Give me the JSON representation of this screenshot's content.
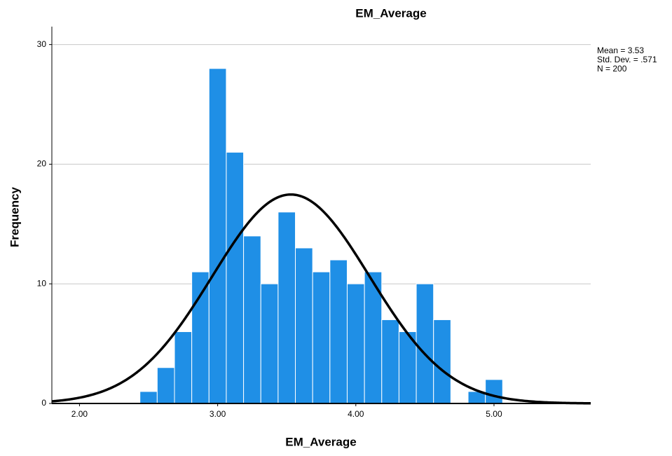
{
  "chart_data": {
    "type": "histogram",
    "title": "EM_Average",
    "x_label": "EM_Average",
    "y_label": "Frequency",
    "bins": [
      2.4375,
      2.5625,
      2.6875,
      2.8125,
      2.9375,
      3.0625,
      3.1875,
      3.3125,
      3.4375,
      3.5625,
      3.6875,
      3.8125,
      3.9375,
      4.0625,
      4.1875,
      4.3125,
      4.4375,
      4.5625,
      4.6875,
      4.8125,
      4.9375,
      5.0625
    ],
    "values": [
      1,
      3,
      6,
      11,
      28,
      21,
      14,
      10,
      16,
      13,
      11,
      12,
      10,
      11,
      7,
      6,
      10,
      7,
      0,
      1,
      2
    ],
    "color": "#1f8fe6",
    "edge_color": "#ffffff",
    "xlim": [
      1.8,
      5.7
    ],
    "ylim": [
      0,
      31.5
    ],
    "xticks": [
      {
        "value": 2,
        "label": "2.00"
      },
      {
        "value": 3,
        "label": "3.00"
      },
      {
        "value": 4,
        "label": "4.00"
      },
      {
        "value": 5,
        "label": "5.00"
      }
    ],
    "yticks": [
      0,
      10,
      20,
      30
    ],
    "grid": true,
    "normal_curve": {
      "mean": {
        "value": 3.53,
        "label": "Mean = 3.53"
      },
      "std_dev": {
        "value": 0.571,
        "label": "Std. Dev. = .571"
      },
      "n": {
        "value": 200,
        "label": "N = 200"
      },
      "color": "#000000"
    }
  }
}
